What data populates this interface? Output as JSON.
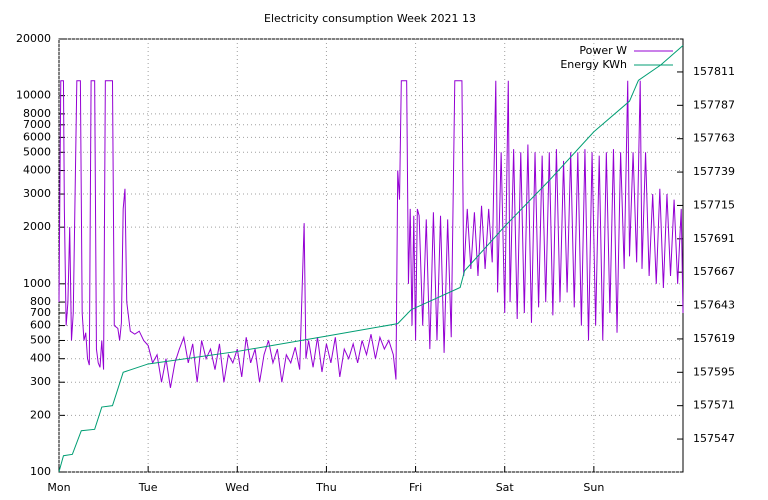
{
  "chart_data": {
    "type": "line",
    "title": "Electricity consumption Week 2021 13",
    "xlim": [
      0,
      7
    ],
    "xticks": [
      {
        "value": 0,
        "label": "Mon"
      },
      {
        "value": 1,
        "label": "Tue"
      },
      {
        "value": 2,
        "label": "Wed"
      },
      {
        "value": 3,
        "label": "Thu"
      },
      {
        "value": 4,
        "label": "Fri"
      },
      {
        "value": 5,
        "label": "Sat"
      },
      {
        "value": 6,
        "label": "Sun"
      }
    ],
    "ylim": [
      100,
      20000
    ],
    "log_y": true,
    "yticks": [
      100,
      200,
      300,
      400,
      500,
      600,
      700,
      800,
      1000,
      2000,
      3000,
      4000,
      5000,
      6000,
      7000,
      8000,
      10000,
      20000
    ],
    "y2lim": [
      157523.3,
      157834.7
    ],
    "y2ticks": [
      157547,
      157571,
      157595,
      157619,
      157643,
      157667,
      157691,
      157715,
      157739,
      157763,
      157787,
      157811
    ],
    "grid": true,
    "legend": "top-right",
    "series": [
      {
        "name": "Power W",
        "color": "#9400d3",
        "x": [
          0,
          0.02,
          0.05,
          0.06,
          0.08,
          0.1,
          0.12,
          0.14,
          0.16,
          0.2,
          0.24,
          0.26,
          0.28,
          0.3,
          0.32,
          0.34,
          0.36,
          0.4,
          0.42,
          0.44,
          0.46,
          0.48,
          0.5,
          0.52,
          0.6,
          0.62,
          0.66,
          0.68,
          0.7,
          0.72,
          0.74,
          0.76,
          0.8,
          0.85,
          0.9,
          0.95,
          1.0,
          1.05,
          1.1,
          1.15,
          1.2,
          1.25,
          1.3,
          1.35,
          1.4,
          1.45,
          1.5,
          1.55,
          1.6,
          1.65,
          1.7,
          1.75,
          1.8,
          1.85,
          1.9,
          1.95,
          2.0,
          2.05,
          2.1,
          2.15,
          2.2,
          2.25,
          2.3,
          2.35,
          2.4,
          2.45,
          2.5,
          2.55,
          2.6,
          2.65,
          2.7,
          2.75,
          2.77,
          2.8,
          2.85,
          2.9,
          2.95,
          3.0,
          3.05,
          3.1,
          3.15,
          3.2,
          3.25,
          3.3,
          3.35,
          3.4,
          3.45,
          3.5,
          3.55,
          3.6,
          3.65,
          3.7,
          3.75,
          3.78,
          3.8,
          3.82,
          3.84,
          3.9,
          3.92,
          3.94,
          3.96,
          3.98,
          4.0,
          4.02,
          4.04,
          4.08,
          4.12,
          4.16,
          4.2,
          4.24,
          4.28,
          4.32,
          4.36,
          4.4,
          4.44,
          4.52,
          4.54,
          4.58,
          4.62,
          4.66,
          4.7,
          4.74,
          4.78,
          4.82,
          4.86,
          4.9,
          4.92,
          4.96,
          5.0,
          5.04,
          5.06,
          5.1,
          5.14,
          5.18,
          5.22,
          5.26,
          5.3,
          5.34,
          5.38,
          5.42,
          5.46,
          5.5,
          5.54,
          5.58,
          5.62,
          5.66,
          5.7,
          5.74,
          5.78,
          5.82,
          5.86,
          5.9,
          5.94,
          5.98,
          6.02,
          6.06,
          6.1,
          6.14,
          6.18,
          6.22,
          6.26,
          6.3,
          6.34,
          6.38,
          6.4,
          6.44,
          6.48,
          6.52,
          6.54,
          6.58,
          6.62,
          6.66,
          6.7,
          6.74,
          6.78,
          6.82,
          6.86,
          6.9,
          6.94,
          6.98,
          7.0
        ],
        "values": [
          800,
          12000,
          12000,
          2500,
          600,
          800,
          2000,
          500,
          700,
          12000,
          12000,
          700,
          500,
          550,
          400,
          370,
          12000,
          12000,
          450,
          380,
          360,
          500,
          350,
          12000,
          12000,
          600,
          580,
          500,
          620,
          2500,
          3200,
          800,
          560,
          540,
          560,
          500,
          470,
          380,
          420,
          300,
          400,
          280,
          380,
          450,
          520,
          380,
          480,
          300,
          500,
          400,
          450,
          350,
          480,
          300,
          420,
          380,
          450,
          320,
          520,
          380,
          450,
          300,
          420,
          500,
          380,
          450,
          300,
          420,
          380,
          460,
          350,
          2100,
          400,
          500,
          360,
          520,
          340,
          480,
          380,
          520,
          320,
          450,
          400,
          480,
          380,
          500,
          420,
          540,
          400,
          520,
          450,
          500,
          420,
          310,
          4000,
          2800,
          12000,
          12000,
          1000,
          2500,
          600,
          2300,
          500,
          2500,
          2300,
          600,
          2200,
          450,
          2400,
          500,
          2300,
          430,
          2200,
          520,
          12000,
          12000,
          1100,
          2500,
          1200,
          2400,
          1100,
          2600,
          1200,
          2500,
          1300,
          12000,
          900,
          5000,
          700,
          12000,
          800,
          5200,
          650,
          5000,
          700,
          5500,
          620,
          5000,
          750,
          4800,
          800,
          5000,
          680,
          5200,
          800,
          4500,
          900,
          5000,
          750,
          5000,
          600,
          5200,
          500,
          5000,
          600,
          4800,
          500,
          5000,
          700,
          5200,
          550,
          5000,
          1200,
          12000,
          1400,
          5000,
          1300,
          12000,
          1200,
          5000,
          1100,
          3000,
          1000,
          3200,
          950,
          3000,
          1100,
          2800,
          1000,
          2500,
          700
        ]
      },
      {
        "name": "Energy KWh",
        "color": "#009e73",
        "axis": "y2",
        "x": [
          0,
          0.05,
          0.15,
          0.25,
          0.4,
          0.48,
          0.6,
          0.72,
          1.0,
          2.0,
          3.0,
          3.8,
          3.95,
          4.5,
          4.55,
          5.0,
          5.5,
          6.0,
          6.4,
          6.5,
          6.75,
          7.0
        ],
        "values": [
          157523.5,
          157535,
          157536,
          157553,
          157554,
          157570,
          157571,
          157595,
          157601,
          157610,
          157621,
          157630,
          157640,
          157656,
          157668,
          157700,
          157733,
          157768,
          157790,
          157805,
          157816,
          157830
        ]
      }
    ]
  }
}
